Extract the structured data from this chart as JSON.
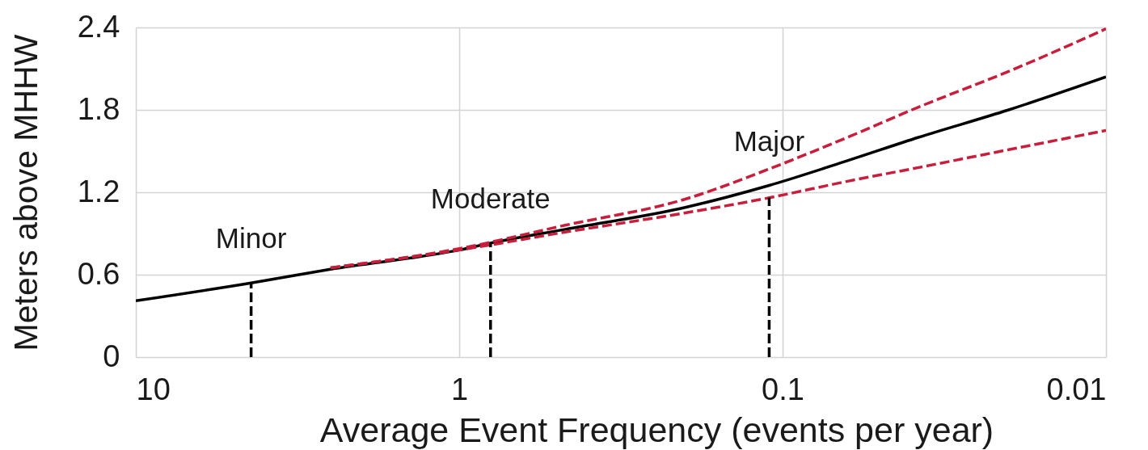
{
  "chart_data": {
    "type": "line",
    "xlabel": "Average Event Frequency (events per year)",
    "ylabel": "Meters above MHHW",
    "xlim": [
      10,
      0.01
    ],
    "xticks": [
      10,
      1,
      0.1,
      0.01
    ],
    "ylim": [
      0,
      2.4
    ],
    "yticks": [
      0,
      0.6,
      1.2,
      1.8,
      2.4
    ],
    "log": "x",
    "grid": true,
    "series": [
      {
        "color": "#000000",
        "line_style": "solid",
        "x": [
          10,
          4.4,
          2.5,
          1,
          0.8,
          0.47,
          0.2,
          0.11,
          0.063,
          0.038,
          0.02,
          0.01
        ],
        "values": [
          0.41,
          0.54,
          0.64,
          0.78,
          0.83,
          0.93,
          1.09,
          1.25,
          1.43,
          1.6,
          1.8,
          2.04
        ]
      },
      {
        "color": "#c81e3c",
        "line_style": "dashed",
        "x": [
          2.5,
          1,
          0.47,
          0.2,
          0.11,
          0.063,
          0.038,
          0.02,
          0.01
        ],
        "values": [
          0.65,
          0.79,
          0.96,
          1.15,
          1.37,
          1.6,
          1.82,
          2.08,
          2.39
        ]
      },
      {
        "color": "#c81e3c",
        "line_style": "dashed",
        "x": [
          2.5,
          1,
          0.47,
          0.2,
          0.11,
          0.063,
          0.038,
          0.02,
          0.01
        ],
        "values": [
          0.65,
          0.78,
          0.91,
          1.05,
          1.16,
          1.28,
          1.38,
          1.51,
          1.65
        ]
      },
      {
        "color": "#000000",
        "line_style": "dashed",
        "x": [
          4.4,
          4.4
        ],
        "values": [
          0,
          0.54
        ]
      },
      {
        "color": "#000000",
        "line_style": "dashed",
        "x": [
          0.8,
          0.8
        ],
        "values": [
          0,
          0.83
        ]
      },
      {
        "color": "#000000",
        "line_style": "dashed",
        "x": [
          0.11,
          0.11
        ],
        "values": [
          0,
          1.16
        ]
      }
    ],
    "annotations": [
      {
        "text": "Minor",
        "x": 4.4,
        "y": 0.54
      },
      {
        "text": "Moderate",
        "x": 0.8,
        "y": 0.83
      },
      {
        "text": "Major",
        "x": 0.11,
        "y": 1.25
      }
    ]
  }
}
